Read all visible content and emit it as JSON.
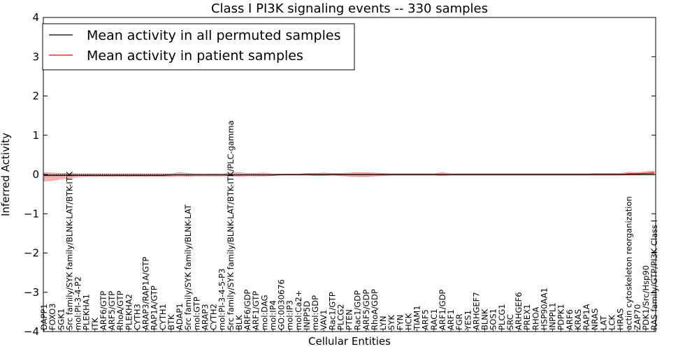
{
  "chart_data": {
    "type": "line",
    "title": "Class I PI3K signaling events -- 330 samples",
    "xlabel": "Cellular Entities",
    "ylabel": "Inferred Activity",
    "ylim": [
      -4,
      4
    ],
    "yticks": [
      {
        "value": -4,
        "label": "−4"
      },
      {
        "value": -3,
        "label": "−3"
      },
      {
        "value": -2,
        "label": "−2"
      },
      {
        "value": -1,
        "label": "−1"
      },
      {
        "value": 0,
        "label": "0"
      },
      {
        "value": 1,
        "label": "1"
      },
      {
        "value": 2,
        "label": "2"
      },
      {
        "value": 3,
        "label": "3"
      },
      {
        "value": 4,
        "label": "4"
      }
    ],
    "grid": false,
    "legend_position": "top-left",
    "categories": [
      "DAPP1",
      "FOXO3",
      "SGK1",
      "Src family/SYK family/BLNK-LAT/BTK-ITK",
      "mol:PI-3-4-P2",
      "PLEKHA1",
      "ITK",
      "ARF6/GTP",
      "ARF5/GTP",
      "RhoA/GTP",
      "PLEKHA2",
      "CYTH3",
      "ARAP3/RAP1A/GTP",
      "RAP1A/GTP",
      "CYTH1",
      "BTK",
      "ADAP1",
      "Src family/SYK family/BLNK-LAT",
      "mol:GTP",
      "ARAP3",
      "CYTH2",
      "mol:PI-3-4-5-P3",
      "Src family/SYK family/BLNK-LAT/BTK-ITK/PLC-gamma",
      "BLK",
      "ARF6/GDP",
      "ARF1/GTP",
      "mol:DAG",
      "mol:IP4",
      "GO:0030676",
      "mol:IP3",
      "mol:Ca2+",
      "INPP5D",
      "mol:GDP",
      "VAV1",
      "Rac1/GTP",
      "PLCG2",
      "PTEN",
      "Rac1/GDP",
      "ARF5/GDP",
      "RhoA/GDP",
      "LYN",
      "SYK",
      "FYN",
      "HCK",
      "TIAM1",
      "ARF5",
      "RAC1",
      "ARF1/GDP",
      "ARF1",
      "FGR",
      "YES1",
      "ARHGEF7",
      "BLNK",
      "SOS1",
      "PLCG1",
      "SRC",
      "ARHGEF6",
      "PREX1",
      "RHOA",
      "HSP90AA1",
      "INPPL1",
      "PDPK1",
      "ARF6",
      "KRAS",
      "RAP1A",
      "NRAS",
      "LAT",
      "LCK",
      "HRAS",
      "actin cytoskeleton reorganization",
      "ZAP70",
      "PDK1/Src/Hsp90",
      "RAS family/GTP/PI3K Class I"
    ],
    "series": [
      {
        "name": "Mean activity in all permuted samples",
        "color": "#000000",
        "values": [
          -0.02,
          -0.02,
          -0.02,
          -0.02,
          -0.02,
          -0.02,
          -0.02,
          -0.02,
          -0.02,
          -0.02,
          -0.02,
          -0.02,
          -0.02,
          -0.02,
          -0.02,
          -0.01,
          -0.01,
          -0.01,
          -0.01,
          -0.01,
          -0.01,
          -0.01,
          -0.01,
          -0.01,
          -0.01,
          -0.01,
          -0.01,
          -0.01,
          0.0,
          0.0,
          0.0,
          0.0,
          0.0,
          0.0,
          0.0,
          0.0,
          0.0,
          0.0,
          0.0,
          0.0,
          0.0,
          0.0,
          0.0,
          0.0,
          0.0,
          0.0,
          0.0,
          0.0,
          0.0,
          0.0,
          0.0,
          0.0,
          0.0,
          0.0,
          0.0,
          0.0,
          0.0,
          0.0,
          0.0,
          0.0,
          0.0,
          0.0,
          0.0,
          0.0,
          0.0,
          0.0,
          0.0,
          0.0,
          0.0,
          0.0,
          0.0,
          0.0,
          0.0
        ]
      },
      {
        "name": "Mean activity in patient samples",
        "color": "#ff0000",
        "values": [
          -0.02,
          -0.02,
          -0.02,
          -0.02,
          -0.02,
          -0.02,
          -0.02,
          -0.02,
          -0.02,
          -0.02,
          -0.02,
          -0.02,
          -0.02,
          -0.02,
          -0.02,
          -0.01,
          -0.01,
          -0.01,
          -0.01,
          -0.01,
          -0.01,
          -0.01,
          -0.01,
          -0.01,
          -0.01,
          -0.01,
          -0.01,
          -0.01,
          0.0,
          0.0,
          0.0,
          0.0,
          0.0,
          0.0,
          0.0,
          0.0,
          0.0,
          0.0,
          0.0,
          0.0,
          0.0,
          0.0,
          0.0,
          0.0,
          0.0,
          0.0,
          0.0,
          0.0,
          0.0,
          0.0,
          0.0,
          0.0,
          0.0,
          0.0,
          0.0,
          0.0,
          0.0,
          0.0,
          0.0,
          0.0,
          0.0,
          0.0,
          0.0,
          0.0,
          0.0,
          0.0,
          0.0,
          0.0,
          0.0,
          0.02,
          0.02,
          0.03,
          0.04
        ]
      }
    ],
    "bands": [
      {
        "series": "Mean activity in patient samples",
        "color": "#ff0000",
        "lower": [
          -0.17,
          -0.15,
          -0.12,
          -0.09,
          -0.06,
          -0.05,
          -0.05,
          -0.05,
          -0.05,
          -0.05,
          -0.05,
          -0.05,
          -0.05,
          -0.05,
          -0.05,
          -0.05,
          -0.04,
          -0.05,
          -0.04,
          -0.04,
          -0.04,
          -0.04,
          -0.04,
          -0.05,
          -0.04,
          -0.04,
          -0.04,
          -0.03,
          -0.02,
          -0.02,
          -0.02,
          -0.02,
          -0.03,
          -0.03,
          -0.02,
          -0.03,
          -0.04,
          -0.05,
          -0.05,
          -0.04,
          -0.03,
          -0.02,
          -0.02,
          -0.02,
          -0.02,
          -0.02,
          -0.02,
          -0.03,
          -0.02,
          -0.02,
          -0.02,
          -0.02,
          -0.02,
          -0.02,
          -0.02,
          -0.02,
          -0.02,
          -0.02,
          -0.02,
          -0.02,
          -0.02,
          -0.02,
          -0.02,
          -0.02,
          -0.02,
          -0.02,
          -0.02,
          -0.02,
          -0.02,
          -0.01,
          -0.01,
          0.0,
          0.0
        ],
        "upper": [
          0.05,
          0.04,
          0.03,
          0.03,
          0.02,
          0.02,
          0.02,
          0.02,
          0.02,
          0.02,
          0.02,
          0.02,
          0.02,
          0.02,
          0.02,
          0.02,
          0.05,
          0.03,
          0.02,
          0.02,
          0.02,
          0.02,
          0.04,
          0.05,
          0.03,
          0.03,
          0.04,
          0.02,
          0.01,
          0.01,
          0.01,
          0.03,
          0.03,
          0.04,
          0.03,
          0.03,
          0.04,
          0.05,
          0.05,
          0.04,
          0.03,
          0.02,
          0.02,
          0.02,
          0.02,
          0.02,
          0.02,
          0.05,
          0.02,
          0.02,
          0.02,
          0.02,
          0.02,
          0.02,
          0.02,
          0.02,
          0.02,
          0.02,
          0.02,
          0.02,
          0.02,
          0.02,
          0.02,
          0.02,
          0.02,
          0.03,
          0.03,
          0.03,
          0.03,
          0.06,
          0.05,
          0.07,
          0.09
        ]
      },
      {
        "series": "Mean activity in all permuted samples",
        "color": "#999999",
        "lower": [
          -0.06,
          -0.06,
          -0.05,
          -0.05,
          -0.04,
          -0.04,
          -0.04,
          -0.04,
          -0.04,
          -0.04,
          -0.04,
          -0.04,
          -0.04,
          -0.04,
          -0.04,
          -0.04,
          -0.04,
          -0.04,
          -0.04,
          -0.04,
          -0.04,
          -0.04,
          -0.04,
          -0.04,
          -0.04,
          -0.04,
          -0.04,
          -0.03,
          -0.02,
          -0.02,
          -0.02,
          -0.02,
          -0.03,
          -0.03,
          -0.02,
          -0.03,
          -0.05,
          -0.06,
          -0.06,
          -0.04,
          -0.03,
          -0.02,
          -0.02,
          -0.02,
          -0.02,
          -0.02,
          -0.02,
          -0.04,
          -0.02,
          -0.02,
          -0.02,
          -0.02,
          -0.02,
          -0.02,
          -0.02,
          -0.02,
          -0.02,
          -0.02,
          -0.02,
          -0.02,
          -0.02,
          -0.02,
          -0.02,
          -0.02,
          -0.02,
          -0.02,
          -0.02,
          -0.02,
          -0.02,
          -0.02,
          -0.02,
          -0.02,
          -0.02
        ],
        "upper": [
          0.02,
          0.02,
          0.02,
          0.02,
          0.02,
          0.02,
          0.02,
          0.02,
          0.02,
          0.02,
          0.02,
          0.02,
          0.02,
          0.02,
          0.02,
          0.02,
          0.02,
          0.02,
          0.02,
          0.02,
          0.02,
          0.02,
          0.02,
          0.02,
          0.02,
          0.02,
          0.02,
          0.02,
          0.01,
          0.01,
          0.01,
          0.01,
          0.02,
          0.02,
          0.02,
          0.02,
          0.02,
          0.02,
          0.02,
          0.02,
          0.02,
          0.02,
          0.02,
          0.02,
          0.02,
          0.02,
          0.02,
          0.02,
          0.02,
          0.02,
          0.02,
          0.02,
          0.02,
          0.02,
          0.02,
          0.02,
          0.02,
          0.02,
          0.02,
          0.02,
          0.02,
          0.02,
          0.02,
          0.02,
          0.02,
          0.02,
          0.02,
          0.02,
          0.02,
          0.02,
          0.02,
          0.02,
          0.02
        ]
      }
    ]
  }
}
